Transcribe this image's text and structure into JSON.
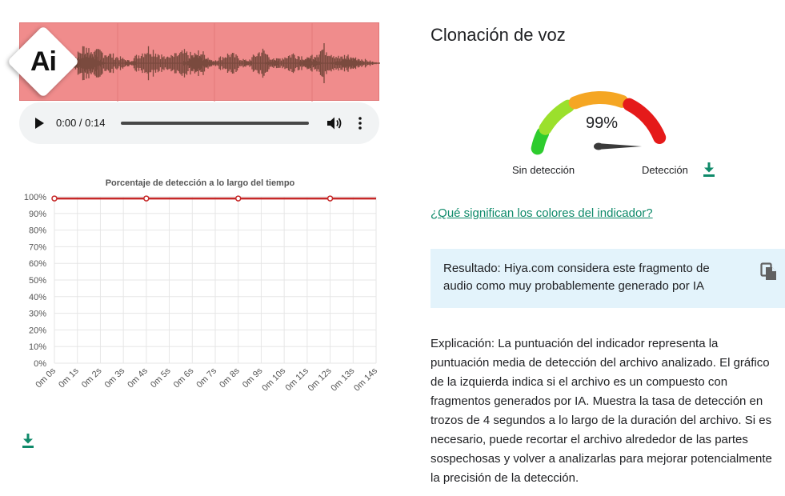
{
  "player": {
    "time": "0:00 / 0:14"
  },
  "badge": {
    "text": "Ai"
  },
  "colors": {
    "waveform_bg": "#f08c8c",
    "waveform_fg": "#7a4a3e",
    "line": "#c62828",
    "accent_green": "#0f8a6a",
    "result_bg": "#e3f3fb"
  },
  "chart_data": {
    "type": "line",
    "title": "Porcentaje de detección a lo largo del tiempo",
    "categories": [
      "0m 0s",
      "0m 1s",
      "0m 2s",
      "0m 3s",
      "0m 4s",
      "0m 5s",
      "0m 6s",
      "0m 7s",
      "0m 8s",
      "0m 9s",
      "0m 10s",
      "0m 11s",
      "0m 12s",
      "0m 13s",
      "0m 14s"
    ],
    "y_ticks": [
      "0%",
      "10%",
      "20%",
      "30%",
      "40%",
      "50%",
      "60%",
      "70%",
      "80%",
      "90%",
      "100%"
    ],
    "ylim": [
      0,
      100
    ],
    "grid": true,
    "series": [
      {
        "points": [
          {
            "x": 0,
            "y": 99
          },
          {
            "x": 4,
            "y": 99
          },
          {
            "x": 8,
            "y": 99
          },
          {
            "x": 12,
            "y": 99
          },
          {
            "x": 14,
            "y": 99
          }
        ],
        "markers_at": [
          0,
          4,
          8,
          12
        ]
      }
    ]
  },
  "detector": {
    "title": "Clonación de voz",
    "score_value": 0.99,
    "score_text": "99%",
    "label_low": "Sin detección",
    "label_high": "Detección",
    "gauge_segments": [
      {
        "color": "#2ecc2e"
      },
      {
        "color": "#9be02c"
      },
      {
        "color": "#f5a623"
      },
      {
        "color": "#e51a1a"
      }
    ]
  },
  "links": {
    "colors_question": "¿Qué significan los colores del indicador?"
  },
  "result": {
    "text": "Resultado: Hiya.com considera este fragmento de audio como muy probablemente generado por IA"
  },
  "explanation": {
    "text": "Explicación: La puntuación del indicador representa la puntuación media de detección del archivo analizado. El gráfico de la izquierda indica si el archivo es un compuesto con fragmentos generados por IA. Muestra la tasa de detección en trozos de 4 segundos a lo largo de la duración del archivo. Si es necesario, puede recortar el archivo alrededor de las partes sospechosas y volver a analizarlas para mejorar potencialmente la precisión de la detección."
  },
  "icons": {
    "play": "play-icon",
    "volume": "volume-icon",
    "menu": "more-vert-icon",
    "download": "download-icon",
    "copy": "copy-icon"
  }
}
